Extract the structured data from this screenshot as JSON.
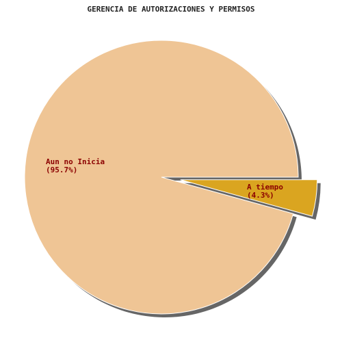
{
  "chart_data": {
    "type": "pie",
    "title": "GERENCIA DE AUTORIZACIONES Y PERMISOS",
    "slices": [
      {
        "label": "Aun no Inicia",
        "value": 95.7,
        "percent_label": "(95.7%)",
        "color": "#efc595",
        "exploded": false
      },
      {
        "label": "A tiempo",
        "value": 4.3,
        "percent_label": "(4.3%)",
        "color": "#daa520",
        "exploded": true
      }
    ],
    "shadow_color": "#666666",
    "label_color": "#8b0000"
  }
}
